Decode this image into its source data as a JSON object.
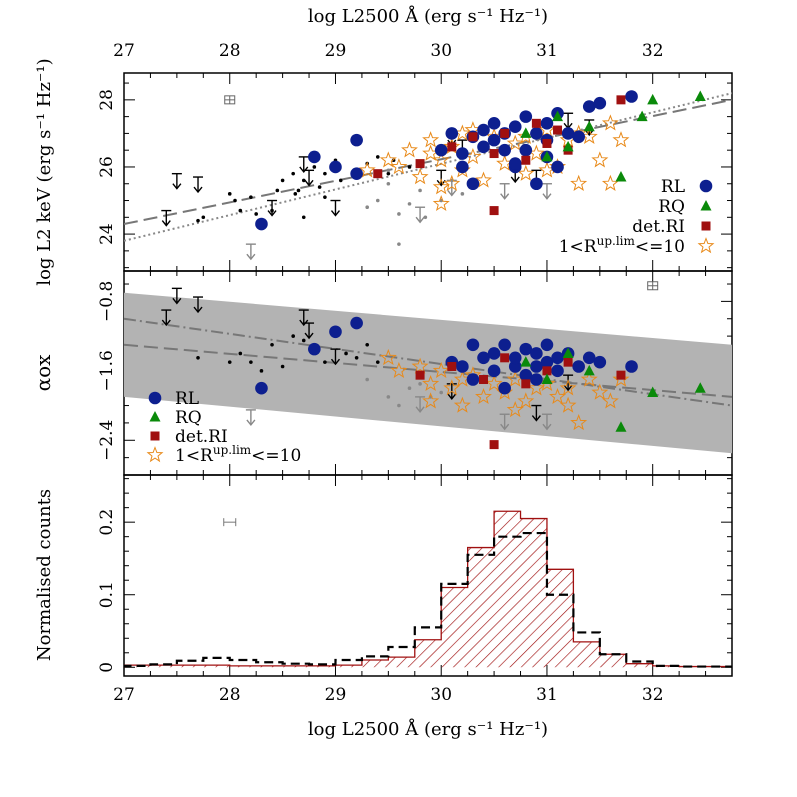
{
  "chart_data": [
    {
      "type": "scatter",
      "panel": "top",
      "xlabel": "log L2500 Å (erg s⁻¹ Hz⁻¹)",
      "ylabel": "log L2 keV (erg s⁻¹ Hz⁻¹)",
      "xlim": [
        27,
        32.75
      ],
      "ylim": [
        22.9,
        28.8
      ],
      "xticks": [
        "27",
        "28",
        "29",
        "30",
        "31",
        "32"
      ],
      "yticks": [
        "24",
        "26",
        "28"
      ],
      "legend": {
        "placement": "bottom-right",
        "entries": [
          "RL",
          "RQ",
          "det.RI",
          "1<R^up.lim<=10"
        ]
      },
      "fits": [
        {
          "style": "dashed",
          "x": [
            27,
            32.75
          ],
          "y": [
            24.3,
            28.0
          ]
        },
        {
          "style": "dotted",
          "x": [
            27,
            32.75
          ],
          "y": [
            23.8,
            28.2
          ]
        }
      ],
      "error_bar": {
        "x": 28,
        "y": 28.0
      },
      "series": [
        {
          "name": "RL",
          "marker": "circle",
          "color": "#0d1f8f",
          "x": [
            28.3,
            28.8,
            29.0,
            29.2,
            29.2,
            30.0,
            30.1,
            30.2,
            30.3,
            30.3,
            30.4,
            30.5,
            30.5,
            30.6,
            30.6,
            30.7,
            30.7,
            30.8,
            30.8,
            30.9,
            30.9,
            31.0,
            31.0,
            31.1,
            31.1,
            31.2,
            31.3,
            31.4,
            31.5,
            31.8,
            30.2,
            30.7,
            31.0,
            30.4
          ],
          "y": [
            24.3,
            26.3,
            26.0,
            26.8,
            25.8,
            26.5,
            27.0,
            26.0,
            26.9,
            25.5,
            27.1,
            26.8,
            27.3,
            26.5,
            27.0,
            27.2,
            26.0,
            27.5,
            26.5,
            27.0,
            25.5,
            27.3,
            26.8,
            27.6,
            26.0,
            27.0,
            26.9,
            27.8,
            27.9,
            28.1,
            26.4,
            26.1,
            26.3,
            26.6
          ]
        },
        {
          "name": "RQ",
          "marker": "triangle",
          "color": "#0a8a0a",
          "x": [
            30.8,
            31.0,
            31.1,
            31.2,
            31.4,
            31.7,
            31.9,
            32.0,
            32.45
          ],
          "y": [
            27.0,
            26.3,
            27.5,
            26.6,
            27.2,
            25.7,
            27.5,
            28.0,
            28.1
          ]
        },
        {
          "name": "det.RI",
          "marker": "square",
          "color": "#a01010",
          "x": [
            29.4,
            29.8,
            30.1,
            30.3,
            30.5,
            30.6,
            30.8,
            30.9,
            31.0,
            31.1,
            31.2,
            31.7,
            30.5
          ],
          "y": [
            25.8,
            26.1,
            26.6,
            26.9,
            26.4,
            27.0,
            26.2,
            27.3,
            26.7,
            27.1,
            26.5,
            28.0,
            24.7
          ]
        },
        {
          "name": "1<R^up.lim<=10",
          "marker": "star",
          "color": "#e88a1a",
          "x": [
            29.3,
            29.5,
            29.6,
            29.7,
            29.8,
            29.9,
            30.0,
            30.0,
            30.1,
            30.2,
            30.2,
            30.3,
            30.4,
            30.5,
            30.6,
            30.7,
            30.8,
            30.9,
            31.0,
            31.1,
            31.2,
            31.3,
            31.4,
            31.5,
            31.6,
            31.7,
            30.0,
            29.9,
            30.3,
            30.8,
            31.0,
            31.3,
            31.6,
            30.1
          ],
          "y": [
            25.9,
            26.2,
            26.0,
            26.5,
            25.7,
            26.8,
            26.2,
            25.4,
            26.6,
            25.9,
            27.0,
            26.3,
            25.6,
            26.9,
            26.1,
            26.7,
            25.8,
            26.4,
            27.1,
            26.0,
            26.8,
            25.5,
            26.9,
            26.2,
            27.3,
            26.8,
            24.9,
            26.4,
            27.1,
            26.9,
            25.9,
            27.0,
            25.5,
            25.5
          ]
        },
        {
          "name": "",
          "marker": "dot",
          "color": "#000000",
          "x": [
            27.7,
            27.75,
            28.05,
            28.1,
            28.2,
            28.25,
            28.45,
            28.5,
            28.6,
            28.62,
            28.7,
            28.7,
            28.8,
            28.85,
            28.9,
            28.9,
            29.0,
            29.05,
            29.2,
            29.3,
            29.4,
            29.5,
            29.55,
            29.7,
            28.4,
            28.0,
            28.65
          ],
          "y": [
            24.4,
            24.5,
            25.0,
            24.7,
            25.1,
            24.6,
            25.3,
            25.6,
            25.8,
            25.2,
            25.6,
            24.5,
            26.0,
            25.4,
            25.1,
            25.8,
            26.2,
            25.6,
            25.9,
            26.1,
            26.3,
            25.8,
            26.2,
            26.0,
            24.7,
            25.2,
            25.3
          ]
        },
        {
          "name": "",
          "marker": "dot",
          "color": "#888888",
          "x": [
            29.3,
            29.4,
            29.5,
            29.6,
            29.7,
            29.8,
            29.85,
            30.0,
            30.1,
            30.2,
            29.6,
            29.5
          ],
          "y": [
            24.8,
            25.0,
            25.5,
            23.7,
            24.9,
            25.3,
            24.5,
            25.0,
            25.6,
            25.2,
            24.6,
            25.9
          ]
        },
        {
          "name": "",
          "marker": "upper-limit",
          "color": "#000000",
          "x": [
            27.4,
            27.5,
            27.7,
            28.4,
            28.7,
            28.75,
            29.0,
            30.1,
            30.2,
            30.9,
            31.2,
            31.4,
            30.7,
            30.0
          ],
          "y": [
            24.7,
            25.8,
            25.7,
            25.0,
            26.3,
            25.9,
            25.0,
            27.1,
            26.8,
            25.9,
            27.6,
            27.4,
            26.0,
            25.9
          ]
        },
        {
          "name": "",
          "marker": "upper-limit",
          "color": "#888888",
          "x": [
            28.2,
            29.8,
            30.1,
            30.6,
            31.0
          ],
          "y": [
            23.7,
            24.8,
            25.6,
            25.5,
            25.5
          ]
        }
      ]
    },
    {
      "type": "scatter",
      "panel": "middle",
      "xlabel": "",
      "ylabel": "αox",
      "xlim": [
        27,
        32.75
      ],
      "ylim": [
        -2.8,
        -0.45
      ],
      "yticks": [
        "−0.8",
        "−1.6",
        "−2.4"
      ],
      "band": {
        "x": [
          27,
          32.75
        ],
        "upper": [
          -0.7,
          -1.3
        ],
        "lower": [
          -1.9,
          -2.55
        ]
      },
      "fits": [
        {
          "style": "dashed",
          "x": [
            27,
            32.75
          ],
          "y": [
            -1.3,
            -1.9
          ]
        },
        {
          "style": "dash-dot",
          "x": [
            27,
            32.75
          ],
          "y": [
            -1.0,
            -2.0
          ]
        }
      ],
      "error_bar": {
        "x": 32,
        "y": -0.62
      },
      "legend": {
        "placement": "bottom-left",
        "entries": [
          "RL",
          "RQ",
          "det.RI",
          "1<R^up.lim<=10"
        ]
      },
      "series": [
        {
          "name": "RL",
          "marker": "circle",
          "color": "#0d1f8f",
          "x": [
            28.3,
            28.8,
            29.0,
            29.2,
            30.1,
            30.2,
            30.3,
            30.4,
            30.5,
            30.5,
            30.6,
            30.7,
            30.7,
            30.8,
            30.8,
            30.9,
            30.9,
            31.0,
            31.0,
            31.1,
            31.1,
            31.2,
            31.3,
            31.4,
            31.5,
            31.8,
            30.3,
            30.6,
            30.9
          ],
          "y": [
            -1.8,
            -1.35,
            -1.15,
            -1.05,
            -1.5,
            -1.55,
            -1.3,
            -1.45,
            -1.6,
            -1.4,
            -1.3,
            -1.55,
            -1.45,
            -1.35,
            -1.65,
            -1.4,
            -1.7,
            -1.5,
            -1.3,
            -1.45,
            -1.6,
            -1.4,
            -1.55,
            -1.45,
            -1.5,
            -1.55,
            -1.7,
            -1.8,
            -1.55
          ]
        },
        {
          "name": "RQ",
          "marker": "triangle",
          "color": "#0a8a0a",
          "x": [
            30.8,
            31.0,
            31.2,
            31.4,
            31.7,
            32.0,
            32.45
          ],
          "y": [
            -1.5,
            -1.7,
            -1.4,
            -1.6,
            -2.25,
            -1.85,
            -1.8
          ]
        },
        {
          "name": "det.RI",
          "marker": "square",
          "color": "#a01010",
          "x": [
            29.8,
            30.1,
            30.4,
            30.6,
            30.8,
            31.0,
            31.2,
            31.7,
            30.5
          ],
          "y": [
            -1.65,
            -1.55,
            -1.7,
            -1.45,
            -1.75,
            -1.6,
            -1.5,
            -1.65,
            -2.45
          ]
        },
        {
          "name": "1<R^up.lim<=10",
          "marker": "star",
          "color": "#e88a1a",
          "x": [
            29.5,
            29.6,
            29.8,
            29.9,
            30.0,
            30.1,
            30.2,
            30.3,
            30.4,
            30.5,
            30.6,
            30.7,
            30.8,
            30.9,
            31.0,
            31.1,
            31.2,
            31.3,
            31.4,
            31.5,
            31.6,
            31.7,
            29.9,
            30.2,
            30.7,
            31.2
          ],
          "y": [
            -1.45,
            -1.6,
            -1.55,
            -1.75,
            -1.6,
            -1.8,
            -1.7,
            -1.65,
            -1.9,
            -1.75,
            -1.85,
            -1.7,
            -1.95,
            -1.8,
            -1.75,
            -1.9,
            -1.8,
            -2.2,
            -1.7,
            -1.85,
            -1.95,
            -1.7,
            -1.95,
            -2.0,
            -2.05,
            -2.0
          ]
        },
        {
          "name": "",
          "marker": "dot",
          "color": "#000000",
          "x": [
            27.7,
            28.1,
            28.2,
            28.4,
            28.5,
            28.6,
            28.7,
            28.8,
            28.9,
            29.0,
            29.1,
            29.2,
            29.3,
            29.4,
            28.3,
            28.0
          ],
          "y": [
            -1.45,
            -1.4,
            -1.5,
            -1.3,
            -1.55,
            -1.2,
            -1.25,
            -1.35,
            -1.5,
            -1.15,
            -1.4,
            -1.45,
            -1.3,
            -1.5,
            -1.6,
            -1.5
          ]
        },
        {
          "name": "",
          "marker": "dot",
          "color": "#888888",
          "x": [
            29.3,
            29.5,
            29.6,
            29.7,
            29.8,
            29.9,
            30.0
          ],
          "y": [
            -1.7,
            -1.9,
            -2.0,
            -1.8,
            -1.75,
            -1.9,
            -1.85
          ]
        },
        {
          "name": "",
          "marker": "upper-limit",
          "color": "#000000",
          "x": [
            27.4,
            27.5,
            27.7,
            28.7,
            28.75,
            29.0,
            30.1,
            30.9,
            31.2
          ],
          "y": [
            -0.9,
            -0.65,
            -0.75,
            -0.9,
            -1.05,
            -1.35,
            -1.75,
            -2.0,
            -1.65
          ]
        },
        {
          "name": "",
          "marker": "upper-limit",
          "color": "#888888",
          "x": [
            28.2,
            29.8,
            30.6,
            31.0
          ],
          "y": [
            -2.05,
            -1.9,
            -2.1,
            -2.1
          ]
        }
      ]
    },
    {
      "type": "bar",
      "panel": "bottom",
      "xlabel": "log L2500 Å (erg s⁻¹ Hz⁻¹)",
      "ylabel": "Normalised counts",
      "xlim": [
        27,
        32.75
      ],
      "ylim": [
        -0.012,
        0.265
      ],
      "xticks": [
        "27",
        "28",
        "29",
        "30",
        "31",
        "32"
      ],
      "yticks": [
        "0",
        "0.1",
        "0.2"
      ],
      "error_bar": {
        "x": 28,
        "y": 0.2
      },
      "bin_edges": [
        27.0,
        27.25,
        27.5,
        27.75,
        28.0,
        28.25,
        28.5,
        28.75,
        29.0,
        29.25,
        29.5,
        29.75,
        30.0,
        30.25,
        30.5,
        30.75,
        31.0,
        31.25,
        31.5,
        31.75,
        32.0,
        32.25,
        32.5,
        32.75
      ],
      "series": [
        {
          "name": "",
          "style": "solid-hatched",
          "color": "#a01010",
          "values": [
            0.003,
            0.003,
            0.003,
            0.003,
            0.002,
            0.002,
            0.002,
            0.002,
            0.003,
            0.01,
            0.014,
            0.038,
            0.11,
            0.165,
            0.215,
            0.205,
            0.135,
            0.035,
            0.018,
            0.005,
            0.002,
            0.001,
            0.001
          ]
        },
        {
          "name": "",
          "style": "dashed",
          "color": "#000000",
          "values": [
            0.002,
            0.004,
            0.009,
            0.013,
            0.01,
            0.007,
            0.005,
            0.004,
            0.01,
            0.015,
            0.028,
            0.055,
            0.115,
            0.155,
            0.18,
            0.185,
            0.1,
            0.048,
            0.018,
            0.008,
            0.002,
            0.001,
            0.001
          ]
        }
      ]
    }
  ]
}
